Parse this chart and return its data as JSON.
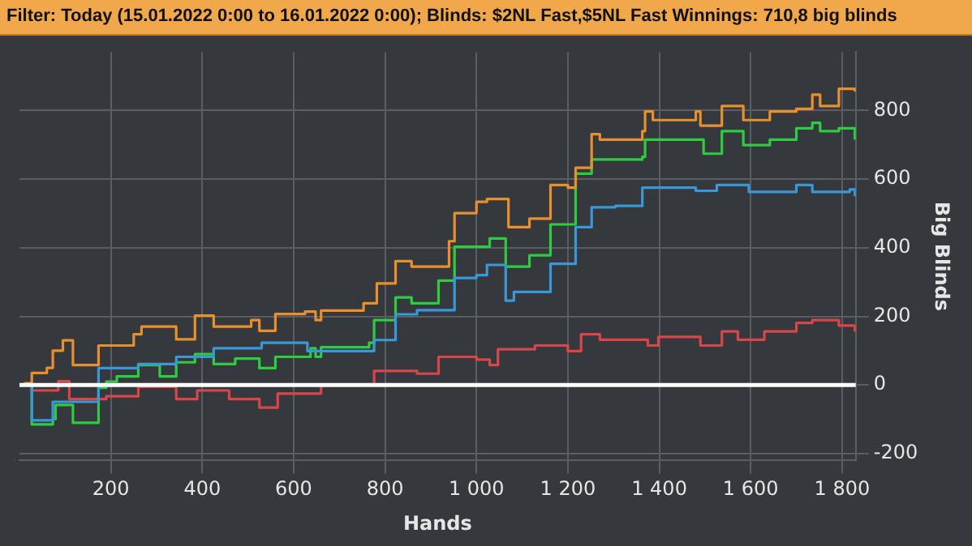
{
  "chart_data": {
    "type": "step",
    "title": "Filter: Today (15.01.2022 0:00 to 16.01.2022 0:00); Blinds: $2NL Fast,$5NL Fast Winnings: 710,8 big blinds",
    "xlabel": "Hands",
    "ylabel": "Big Blinds",
    "xlim": [
      0,
      1830
    ],
    "ylim": [
      -220,
      970
    ],
    "xticks": [
      200,
      400,
      600,
      800,
      {
        "value": 1000,
        "label": "1 000"
      },
      {
        "value": 1200,
        "label": "1 200"
      },
      {
        "value": 1400,
        "label": "1 400"
      },
      {
        "value": 1600,
        "label": "1 600"
      },
      {
        "value": 1800,
        "label": "1 800"
      }
    ],
    "yticks": [
      -200,
      0,
      200,
      400,
      600,
      800
    ],
    "grid": true,
    "legend": false,
    "ref_lines": [
      {
        "axis": "y",
        "value": 0,
        "color": "#ffffff"
      }
    ],
    "series": [
      {
        "color": "#e8902e",
        "x": [
          10,
          27,
          60,
          73,
          95,
          117,
          173,
          250,
          267,
          343,
          384,
          425,
          507,
          525,
          560,
          625,
          648,
          660,
          753,
          782,
          823,
          858,
          940,
          952,
          1000,
          1023,
          1058,
          1070,
          1116,
          1162,
          1200,
          1217,
          1252,
          1270,
          1363,
          1369,
          1386,
          1480,
          1490,
          1537,
          1584,
          1642,
          1700,
          1735,
          1752,
          1793,
          1828
        ],
        "values": [
          5,
          35,
          50,
          100,
          130,
          58,
          115,
          148,
          170,
          133,
          202,
          170,
          189,
          158,
          207,
          214,
          189,
          217,
          238,
          296,
          361,
          345,
          419,
          501,
          534,
          542,
          542,
          460,
          485,
          583,
          575,
          633,
          731,
          715,
          740,
          797,
          772,
          797,
          756,
          813,
          772,
          797,
          805,
          846,
          813,
          863,
          855
        ]
      },
      {
        "color": "#3a98d8",
        "x": [
          10,
          27,
          73,
          173,
          260,
          343,
          425,
          530,
          630,
          776,
          823,
          870,
          952,
          1000,
          1023,
          1064,
          1082,
          1162,
          1217,
          1252,
          1304,
          1363,
          1480,
          1526,
          1596,
          1700,
          1735,
          1817,
          1828
        ],
        "values": [
          0,
          -103,
          -49,
          49,
          61,
          82,
          107,
          123,
          99,
          131,
          206,
          218,
          312,
          320,
          350,
          246,
          271,
          353,
          460,
          518,
          522,
          575,
          566,
          583,
          563,
          583,
          563,
          570,
          550
        ]
      },
      {
        "color": "#2ecc40",
        "x": [
          10,
          27,
          73,
          79,
          117,
          173,
          190,
          213,
          260,
          307,
          343,
          384,
          425,
          472,
          525,
          560,
          637,
          648,
          660,
          765,
          776,
          823,
          858,
          917,
          952,
          1000,
          1029,
          1064,
          1116,
          1162,
          1217,
          1252,
          1363,
          1369,
          1480,
          1497,
          1537,
          1584,
          1642,
          1700,
          1735,
          1752,
          1793,
          1828
        ],
        "values": [
          0,
          -115,
          -99,
          -58,
          -110,
          -8,
          10,
          25,
          58,
          25,
          66,
          90,
          61,
          77,
          49,
          82,
          107,
          82,
          110,
          123,
          189,
          255,
          238,
          304,
          403,
          403,
          427,
          345,
          378,
          468,
          616,
          657,
          665,
          715,
          715,
          674,
          740,
          699,
          715,
          748,
          764,
          740,
          748,
          715
        ]
      },
      {
        "color": "#d9464a",
        "x": [
          10,
          27,
          85,
          109,
          190,
          260,
          343,
          389,
          459,
          525,
          565,
          660,
          776,
          870,
          917,
          1000,
          1029,
          1047,
          1128,
          1200,
          1229,
          1270,
          1375,
          1398,
          1490,
          1537,
          1572,
          1630,
          1700,
          1735,
          1793,
          1828
        ],
        "values": [
          0,
          -16,
          11,
          -41,
          -33,
          -5,
          -41,
          -16,
          -41,
          -66,
          -25,
          0,
          41,
          33,
          82,
          74,
          58,
          104,
          115,
          99,
          148,
          132,
          115,
          140,
          115,
          156,
          132,
          156,
          181,
          189,
          173,
          156
        ]
      }
    ]
  }
}
